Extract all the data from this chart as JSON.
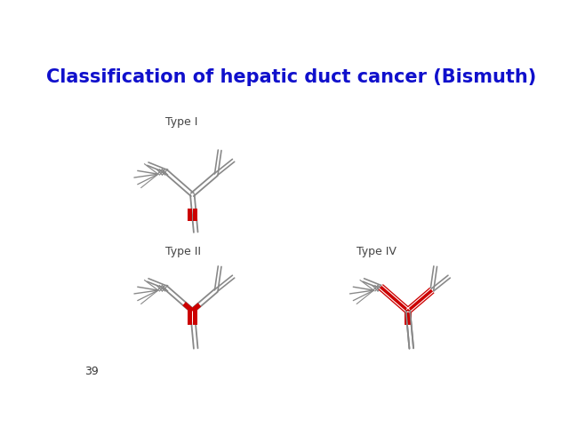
{
  "title": "Classification of hepatic duct cancer (Bismuth)",
  "title_color": "#1010CC",
  "title_fontsize": 15,
  "title_fontweight": "bold",
  "background_color": "#FFFFFF",
  "page_number": "39",
  "labels": {
    "type1": "Type I",
    "type2": "Type II",
    "type4": "Type IV"
  },
  "label_fontsize": 9,
  "label_color": "#444444",
  "duct_color": "#888888",
  "duct_lw": 1.3,
  "red_color": "#CC0000"
}
